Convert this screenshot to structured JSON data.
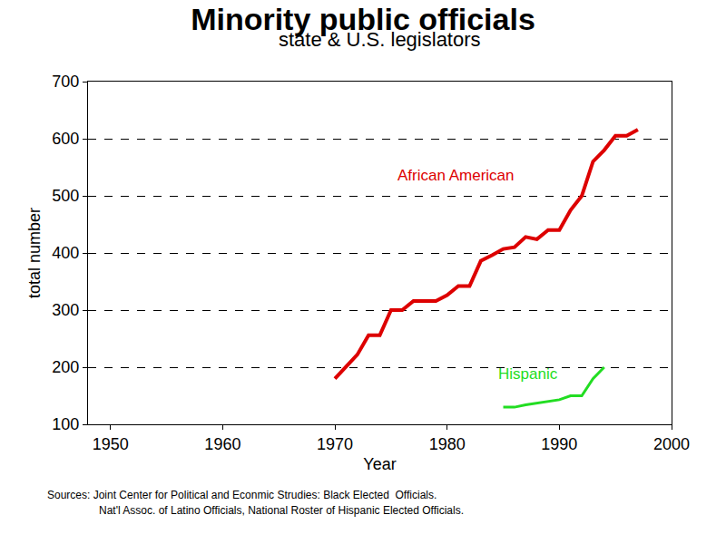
{
  "chart_data": {
    "type": "line",
    "title": "Minority public officials",
    "subtitle": "state & U.S. legislators",
    "x_label": "Year",
    "y_label": "total number",
    "xlim": [
      1948,
      2000
    ],
    "xticks": [
      1950,
      1960,
      1970,
      1980,
      1990,
      2000
    ],
    "ylim": [
      100,
      700
    ],
    "yticks": [
      100,
      200,
      300,
      400,
      500,
      600,
      700
    ],
    "grid": true,
    "series": [
      {
        "name": "African American",
        "color": "#dd0000",
        "x": [
          1970,
          1971,
          1972,
          1973,
          1974,
          1975,
          1976,
          1977,
          1978,
          1979,
          1980,
          1981,
          1982,
          1983,
          1984,
          1985,
          1986,
          1987,
          1988,
          1989,
          1990,
          1991,
          1992,
          1993,
          1994,
          1995,
          1996,
          1997
        ],
        "values": [
          180,
          200,
          222,
          256,
          256,
          300,
          300,
          316,
          316,
          316,
          326,
          342,
          342,
          386,
          396,
          407,
          410,
          428,
          424,
          440,
          440,
          475,
          500,
          560,
          580,
          605,
          605,
          616
        ]
      },
      {
        "name": "Hispanic",
        "color": "#22dd22",
        "x": [
          1985,
          1986,
          1987,
          1988,
          1989,
          1990,
          1991,
          1992,
          1993,
          1994
        ],
        "values": [
          130,
          130,
          134,
          137,
          140,
          143,
          150,
          150,
          180,
          200
        ]
      }
    ],
    "source": [
      "Sources: Joint Center for Political and Econmic Strudies: Black Elected  Officials.",
      "Nat'l Assoc. of Latino Officials, National Roster of Hispanic Elected Officials."
    ]
  }
}
